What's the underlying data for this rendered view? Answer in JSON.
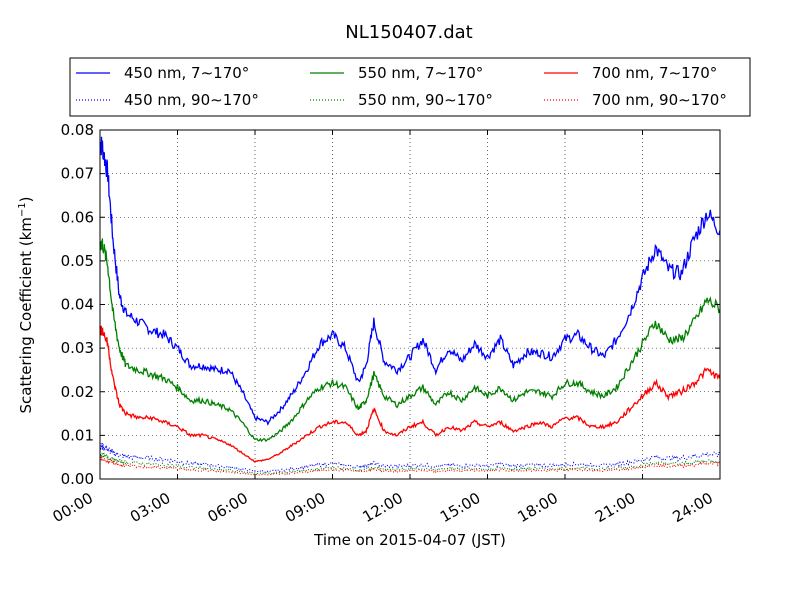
{
  "chart_data": {
    "type": "line",
    "title": "NL150407.dat",
    "xlabel": "Time on 2015-04-07 (JST)",
    "ylabel_main": "Scattering Coefficient (km",
    "ylabel_sup": "−1",
    "ylabel_close": ")",
    "xlim": [
      0,
      24
    ],
    "ylim": [
      0,
      0.08
    ],
    "x_ticks": [
      {
        "value": 0,
        "label": "00:00"
      },
      {
        "value": 3,
        "label": "03:00"
      },
      {
        "value": 6,
        "label": "06:00"
      },
      {
        "value": 9,
        "label": "09:00"
      },
      {
        "value": 12,
        "label": "12:00"
      },
      {
        "value": 15,
        "label": "15:00"
      },
      {
        "value": 18,
        "label": "18:00"
      },
      {
        "value": 21,
        "label": "21:00"
      },
      {
        "value": 24,
        "label": "24:00"
      }
    ],
    "y_ticks": [
      {
        "value": 0.0,
        "label": "0.00"
      },
      {
        "value": 0.01,
        "label": "0.01"
      },
      {
        "value": 0.02,
        "label": "0.02"
      },
      {
        "value": 0.03,
        "label": "0.03"
      },
      {
        "value": 0.04,
        "label": "0.04"
      },
      {
        "value": 0.05,
        "label": "0.05"
      },
      {
        "value": 0.06,
        "label": "0.06"
      },
      {
        "value": 0.07,
        "label": "0.07"
      },
      {
        "value": 0.08,
        "label": "0.08"
      }
    ],
    "grid": true,
    "legend_position": "top, above plot, 3 columns",
    "x": [
      0,
      0.1,
      0.3,
      0.5,
      0.75,
      1.0,
      1.5,
      2.0,
      2.5,
      3.0,
      3.5,
      4.0,
      4.5,
      5.0,
      5.5,
      6.0,
      6.5,
      7.0,
      7.5,
      8.0,
      8.5,
      9.0,
      9.5,
      10.0,
      10.3,
      10.6,
      11.0,
      11.5,
      12.0,
      12.5,
      13.0,
      13.5,
      14.0,
      14.5,
      15.0,
      15.5,
      16.0,
      16.5,
      17.0,
      17.5,
      18.0,
      18.5,
      19.0,
      19.5,
      20.0,
      20.5,
      21.0,
      21.5,
      22.0,
      22.5,
      23.0,
      23.5,
      24.0
    ],
    "series": [
      {
        "name": "450 nm, 7∼170°",
        "color": "#0000ff",
        "style": "solid",
        "values": [
          0.077,
          0.076,
          0.07,
          0.055,
          0.042,
          0.038,
          0.036,
          0.034,
          0.033,
          0.03,
          0.026,
          0.026,
          0.025,
          0.025,
          0.02,
          0.014,
          0.013,
          0.016,
          0.02,
          0.025,
          0.031,
          0.033,
          0.03,
          0.022,
          0.026,
          0.036,
          0.027,
          0.025,
          0.028,
          0.032,
          0.025,
          0.03,
          0.027,
          0.031,
          0.028,
          0.032,
          0.026,
          0.029,
          0.029,
          0.028,
          0.032,
          0.033,
          0.03,
          0.028,
          0.032,
          0.038,
          0.046,
          0.053,
          0.048,
          0.047,
          0.055,
          0.061,
          0.057
        ]
      },
      {
        "name": "450 nm, 90∼170°",
        "color": "#0000ff",
        "style": "dotted",
        "values": [
          0.0075,
          0.0074,
          0.0069,
          0.006,
          0.0055,
          0.0052,
          0.0049,
          0.0047,
          0.0045,
          0.004,
          0.0035,
          0.0034,
          0.003,
          0.0027,
          0.0023,
          0.0018,
          0.0017,
          0.002,
          0.0024,
          0.0028,
          0.0032,
          0.0035,
          0.0032,
          0.0028,
          0.0031,
          0.0036,
          0.003,
          0.0029,
          0.0031,
          0.0033,
          0.0029,
          0.0032,
          0.003,
          0.0032,
          0.003,
          0.0034,
          0.003,
          0.0032,
          0.0032,
          0.0031,
          0.0033,
          0.0034,
          0.0032,
          0.0031,
          0.0034,
          0.0038,
          0.0044,
          0.005,
          0.0048,
          0.0048,
          0.0052,
          0.0057,
          0.0055
        ]
      },
      {
        "name": "550 nm, 7∼170°",
        "color": "#008000",
        "style": "solid",
        "values": [
          0.054,
          0.054,
          0.049,
          0.038,
          0.03,
          0.026,
          0.025,
          0.024,
          0.023,
          0.021,
          0.018,
          0.018,
          0.017,
          0.016,
          0.013,
          0.009,
          0.009,
          0.011,
          0.014,
          0.018,
          0.021,
          0.022,
          0.021,
          0.016,
          0.018,
          0.024,
          0.019,
          0.017,
          0.019,
          0.021,
          0.017,
          0.02,
          0.018,
          0.021,
          0.019,
          0.021,
          0.018,
          0.02,
          0.02,
          0.019,
          0.022,
          0.022,
          0.02,
          0.019,
          0.021,
          0.026,
          0.031,
          0.036,
          0.032,
          0.032,
          0.036,
          0.041,
          0.039
        ]
      },
      {
        "name": "550 nm, 90∼170°",
        "color": "#008000",
        "style": "dotted",
        "values": [
          0.0055,
          0.0055,
          0.005,
          0.0045,
          0.004,
          0.0038,
          0.0036,
          0.0034,
          0.0032,
          0.003,
          0.0026,
          0.0025,
          0.0022,
          0.002,
          0.0017,
          0.0013,
          0.0013,
          0.0015,
          0.0018,
          0.002,
          0.0023,
          0.0026,
          0.0024,
          0.002,
          0.0023,
          0.0027,
          0.0022,
          0.0021,
          0.0023,
          0.0024,
          0.0021,
          0.0024,
          0.0022,
          0.0024,
          0.0022,
          0.0025,
          0.0022,
          0.0024,
          0.0024,
          0.0023,
          0.0025,
          0.0025,
          0.0024,
          0.0023,
          0.0025,
          0.0028,
          0.0032,
          0.0037,
          0.0035,
          0.0035,
          0.0038,
          0.0042,
          0.004
        ]
      },
      {
        "name": "700 nm, 7∼170°",
        "color": "#ff0000",
        "style": "solid",
        "values": [
          0.034,
          0.034,
          0.031,
          0.023,
          0.017,
          0.015,
          0.014,
          0.014,
          0.013,
          0.012,
          0.01,
          0.01,
          0.009,
          0.008,
          0.006,
          0.004,
          0.0045,
          0.006,
          0.008,
          0.01,
          0.012,
          0.013,
          0.013,
          0.01,
          0.011,
          0.016,
          0.011,
          0.01,
          0.012,
          0.013,
          0.01,
          0.012,
          0.011,
          0.013,
          0.012,
          0.013,
          0.011,
          0.012,
          0.013,
          0.012,
          0.014,
          0.014,
          0.012,
          0.012,
          0.013,
          0.016,
          0.019,
          0.022,
          0.019,
          0.02,
          0.022,
          0.025,
          0.023
        ]
      },
      {
        "name": "700 nm, 90∼170°",
        "color": "#ff0000",
        "style": "dotted",
        "values": [
          0.0045,
          0.0045,
          0.0042,
          0.0038,
          0.0033,
          0.003,
          0.0028,
          0.0027,
          0.0026,
          0.0024,
          0.002,
          0.002,
          0.0018,
          0.0016,
          0.0013,
          0.001,
          0.001,
          0.0012,
          0.0014,
          0.0016,
          0.0019,
          0.0021,
          0.002,
          0.0017,
          0.0019,
          0.0023,
          0.0018,
          0.0017,
          0.0019,
          0.002,
          0.0017,
          0.002,
          0.0018,
          0.002,
          0.0018,
          0.0021,
          0.0018,
          0.002,
          0.002,
          0.0019,
          0.0021,
          0.0021,
          0.002,
          0.0019,
          0.0021,
          0.0024,
          0.0028,
          0.0032,
          0.003,
          0.003,
          0.0033,
          0.0036,
          0.0035
        ]
      }
    ]
  }
}
